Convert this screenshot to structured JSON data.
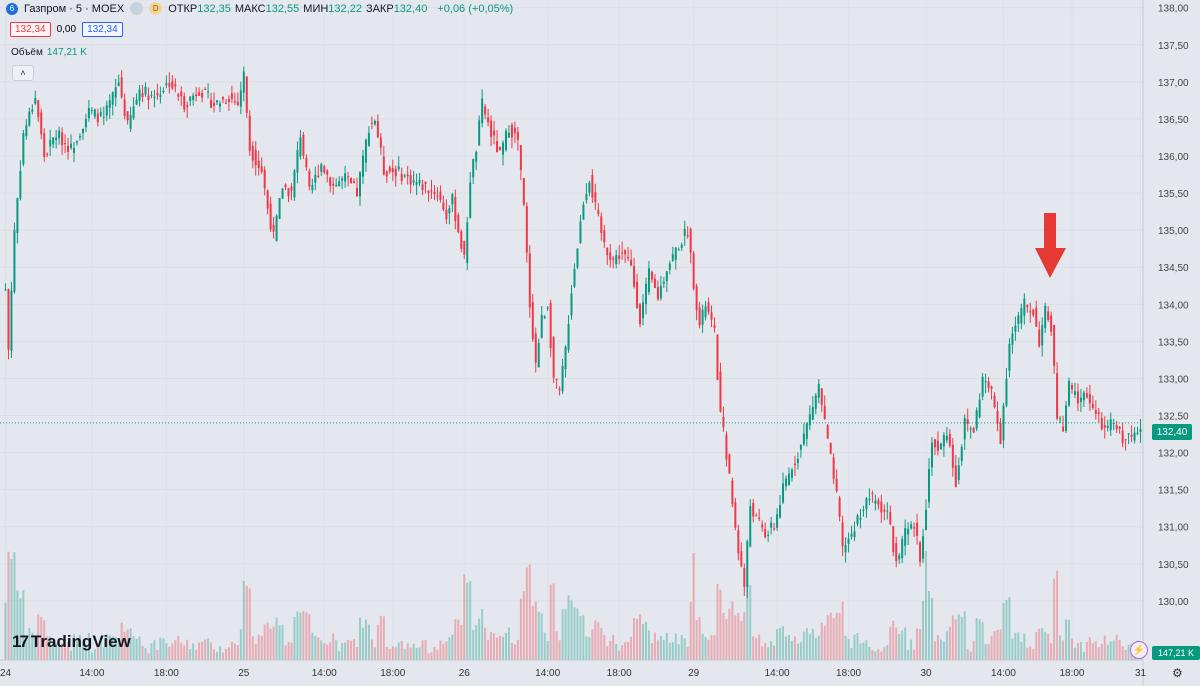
{
  "header": {
    "symbol_icon": "6",
    "symbol": "Газпром · 5 · MOEX",
    "badge_1": "",
    "badge_2": "D",
    "ohlc": [
      {
        "label": "ОТКР",
        "value": "132,35"
      },
      {
        "label": "МАКС",
        "value": "132,55"
      },
      {
        "label": "МИН",
        "value": "132,22"
      },
      {
        "label": "ЗАКР",
        "value": "132,40"
      }
    ],
    "change": "+0,06 (+0,05%)",
    "sell_price": "132,34",
    "spread": "0,00",
    "buy_price": "132,34"
  },
  "volume_legend": {
    "label": "Объём",
    "value": "147,21 K"
  },
  "price_tag": "132,40",
  "volume_tag": "147,21 K",
  "logo": "TradingView",
  "colors": {
    "up": "#089981",
    "down": "#f23645",
    "arrow": "#e53935",
    "background": "#e4e8ee"
  },
  "icons": [
    "chevron-up-icon",
    "lightning-icon",
    "gear-icon",
    "down-arrow-annotation-icon"
  ],
  "chart_data": {
    "type": "candlestick",
    "timeframe": "5",
    "x_tick_labels": [
      "24",
      "14:00",
      "18:00",
      "25",
      "14:00",
      "18:00",
      "26",
      "14:00",
      "18:00",
      "29",
      "14:00",
      "18:00",
      "30",
      "14:00",
      "18:00",
      "31"
    ],
    "y_tick_labels": [
      "138,00",
      "137,50",
      "137,00",
      "136,50",
      "136,00",
      "135,50",
      "135,00",
      "134,50",
      "134,00",
      "133,50",
      "133,00",
      "132,50",
      "132,00",
      "131,50",
      "131,00",
      "130,50",
      "130,00"
    ],
    "ylim": [
      129.85,
      138.05
    ],
    "last_price": 132.4,
    "price_path": [
      [
        0,
        134.2
      ],
      [
        1,
        133.4
      ],
      [
        3,
        135.0
      ],
      [
        6,
        136.3
      ],
      [
        10,
        136.8
      ],
      [
        13,
        136.0
      ],
      [
        17,
        136.3
      ],
      [
        22,
        136.1
      ],
      [
        28,
        136.6
      ],
      [
        33,
        136.5
      ],
      [
        38,
        137.0
      ],
      [
        41,
        136.4
      ],
      [
        45,
        136.9
      ],
      [
        50,
        136.8
      ],
      [
        55,
        137.0
      ],
      [
        60,
        136.7
      ],
      [
        65,
        136.9
      ],
      [
        70,
        136.7
      ],
      [
        75,
        136.8
      ],
      [
        78,
        136.7
      ],
      [
        80,
        137.1
      ],
      [
        82,
        136.1
      ],
      [
        86,
        135.8
      ],
      [
        88,
        135.3
      ],
      [
        90,
        134.9
      ],
      [
        93,
        135.6
      ],
      [
        96,
        135.5
      ],
      [
        99,
        136.3
      ],
      [
        102,
        135.5
      ],
      [
        106,
        135.9
      ],
      [
        110,
        135.6
      ],
      [
        114,
        135.7
      ],
      [
        118,
        135.5
      ],
      [
        122,
        136.4
      ],
      [
        124,
        136.5
      ],
      [
        127,
        135.8
      ],
      [
        131,
        135.8
      ],
      [
        135,
        135.7
      ],
      [
        140,
        135.6
      ],
      [
        145,
        135.5
      ],
      [
        148,
        135.2
      ],
      [
        150,
        135.4
      ],
      [
        152,
        135.0
      ],
      [
        154,
        134.6
      ],
      [
        156,
        135.7
      ],
      [
        158,
        136.1
      ],
      [
        160,
        136.7
      ],
      [
        163,
        136.3
      ],
      [
        166,
        136.0
      ],
      [
        169,
        136.4
      ],
      [
        172,
        136.2
      ],
      [
        174,
        135.3
      ],
      [
        176,
        134.0
      ],
      [
        178,
        133.2
      ],
      [
        180,
        133.8
      ],
      [
        182,
        134.0
      ],
      [
        184,
        133.0
      ],
      [
        186,
        132.8
      ],
      [
        188,
        133.4
      ],
      [
        190,
        134.2
      ],
      [
        192,
        134.8
      ],
      [
        194,
        135.4
      ],
      [
        196,
        135.7
      ],
      [
        198,
        135.3
      ],
      [
        201,
        134.8
      ],
      [
        204,
        134.6
      ],
      [
        207,
        134.7
      ],
      [
        210,
        134.5
      ],
      [
        213,
        133.8
      ],
      [
        216,
        134.4
      ],
      [
        219,
        134.1
      ],
      [
        222,
        134.5
      ],
      [
        226,
        134.8
      ],
      [
        229,
        135.0
      ],
      [
        231,
        134.3
      ],
      [
        233,
        133.7
      ],
      [
        235,
        134.0
      ],
      [
        238,
        133.6
      ],
      [
        240,
        132.5
      ],
      [
        242,
        132.0
      ],
      [
        244,
        131.3
      ],
      [
        246,
        130.7
      ],
      [
        248,
        130.2
      ],
      [
        250,
        131.3
      ],
      [
        252,
        131.1
      ],
      [
        255,
        130.9
      ],
      [
        258,
        131.0
      ],
      [
        261,
        131.5
      ],
      [
        264,
        131.8
      ],
      [
        267,
        132.1
      ],
      [
        270,
        132.5
      ],
      [
        273,
        132.9
      ],
      [
        275,
        132.4
      ],
      [
        277,
        131.9
      ],
      [
        279,
        131.4
      ],
      [
        281,
        130.7
      ],
      [
        284,
        130.9
      ],
      [
        287,
        131.2
      ],
      [
        290,
        131.4
      ],
      [
        293,
        131.3
      ],
      [
        296,
        131.2
      ],
      [
        299,
        130.5
      ],
      [
        302,
        130.9
      ],
      [
        305,
        131.0
      ],
      [
        307,
        130.6
      ],
      [
        309,
        131.3
      ],
      [
        311,
        132.2
      ],
      [
        313,
        132.0
      ],
      [
        316,
        132.3
      ],
      [
        319,
        131.6
      ],
      [
        322,
        132.4
      ],
      [
        325,
        132.3
      ],
      [
        328,
        133.0
      ],
      [
        331,
        132.8
      ],
      [
        334,
        132.2
      ],
      [
        337,
        133.5
      ],
      [
        340,
        133.8
      ],
      [
        342,
        134.0
      ],
      [
        345,
        133.9
      ],
      [
        347,
        133.5
      ],
      [
        349,
        133.9
      ],
      [
        351,
        133.7
      ],
      [
        353,
        132.5
      ],
      [
        355,
        132.3
      ],
      [
        357,
        132.9
      ],
      [
        360,
        132.7
      ],
      [
        363,
        132.8
      ],
      [
        366,
        132.5
      ],
      [
        369,
        132.3
      ],
      [
        372,
        132.4
      ],
      [
        375,
        132.2
      ],
      [
        378,
        132.2
      ],
      [
        381,
        132.4
      ]
    ],
    "annotation": "down-arrow"
  }
}
